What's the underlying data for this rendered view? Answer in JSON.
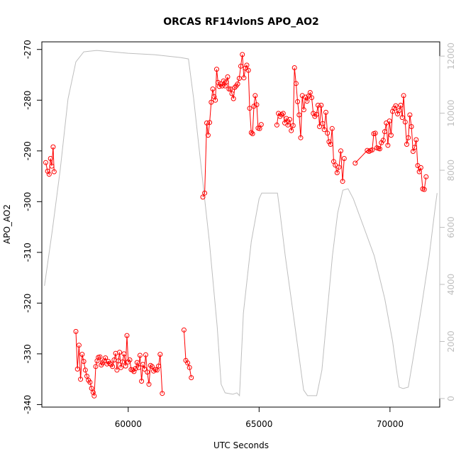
{
  "chart_data": {
    "type": "line",
    "title": "ORCAS RF14vlonS APO_AO2",
    "xlabel": "UTC Seconds",
    "ylabel": "APO_AO2",
    "xlim": [
      56700,
      71900
    ],
    "ylim": [
      -340.5,
      -268.5
    ],
    "y2lim": [
      -300,
      12500
    ],
    "grid": false,
    "x_ticks": [
      60000,
      65000,
      70000
    ],
    "y_ticks": [
      -340,
      -330,
      -320,
      -310,
      -300,
      -290,
      -280,
      -270
    ],
    "y2_ticks": [
      0,
      2000,
      4000,
      6000,
      8000,
      10000,
      12000
    ],
    "colors": {
      "apo": "#ff0000",
      "altitude": "#bebebe",
      "axis": "#000000",
      "right_axis": "#bebebe"
    },
    "series": [
      {
        "axis": "left",
        "style": "line+points",
        "segments": [
          [
            [
              56850,
              -292.3
            ],
            [
              56920,
              -294
            ],
            [
              56980,
              -294.6
            ],
            [
              57030,
              -291.5
            ],
            [
              57080,
              -293
            ],
            [
              57130,
              -289.2
            ],
            [
              57170,
              -294.1
            ]
          ],
          [
            [
              58000,
              -325.6
            ],
            [
              58060,
              -333
            ],
            [
              58120,
              -328.3
            ],
            [
              58180,
              -335
            ],
            [
              58240,
              -330.1
            ],
            [
              58300,
              -331.5
            ],
            [
              58360,
              -333.2
            ],
            [
              58420,
              -334.4
            ],
            [
              58480,
              -335.2
            ],
            [
              58540,
              -335.6
            ],
            [
              58600,
              -336.8
            ],
            [
              58660,
              -337.6
            ],
            [
              58700,
              -338.3
            ],
            [
              58760,
              -332.5
            ],
            [
              58810,
              -331.4
            ],
            [
              58860,
              -330.7
            ],
            [
              58920,
              -330.6
            ],
            [
              58970,
              -332.2
            ],
            [
              59020,
              -331.8
            ],
            [
              59080,
              -331.4
            ],
            [
              59130,
              -330.8
            ],
            [
              59190,
              -332
            ],
            [
              59240,
              -331.5
            ],
            [
              59300,
              -331.9
            ],
            [
              59350,
              -332.1
            ],
            [
              59400,
              -332.5
            ],
            [
              59460,
              -331.2
            ],
            [
              59520,
              -329.9
            ],
            [
              59570,
              -333.2
            ],
            [
              59620,
              -331.4
            ],
            [
              59670,
              -329.7
            ],
            [
              59720,
              -332.7
            ],
            [
              59780,
              -331.6
            ],
            [
              59840,
              -330
            ],
            [
              59900,
              -332.4
            ],
            [
              59950,
              -326.4
            ],
            [
              60000,
              -331.6
            ],
            [
              60060,
              -331.2
            ],
            [
              60110,
              -333.1
            ],
            [
              60170,
              -333.2
            ],
            [
              60220,
              -333.5
            ],
            [
              60280,
              -332.9
            ],
            [
              60340,
              -331.7
            ],
            [
              60400,
              -332.7
            ],
            [
              60450,
              -330.3
            ],
            [
              60510,
              -335.4
            ],
            [
              60560,
              -332.1
            ],
            [
              60620,
              -333
            ],
            [
              60670,
              -330.2
            ],
            [
              60730,
              -333.6
            ],
            [
              60790,
              -336
            ],
            [
              60850,
              -332.3
            ],
            [
              60910,
              -332.5
            ],
            [
              60970,
              -333.4
            ],
            [
              61040,
              -333.1
            ],
            [
              61100,
              -333.2
            ],
            [
              61160,
              -332.4
            ],
            [
              61220,
              -330.1
            ],
            [
              61300,
              -337.8
            ]
          ],
          [
            [
              62130,
              -325.3
            ],
            [
              62200,
              -331.3
            ],
            [
              62270,
              -331.8
            ],
            [
              62340,
              -332.7
            ],
            [
              62410,
              -334.7
            ]
          ],
          [
            [
              62850,
              -299.1
            ],
            [
              62920,
              -298.3
            ],
            [
              63000,
              -284.5
            ],
            [
              63050,
              -286.9
            ],
            [
              63110,
              -284.4
            ],
            [
              63170,
              -280.4
            ],
            [
              63230,
              -277.8
            ],
            [
              63280,
              -279.3
            ],
            [
              63330,
              -280
            ],
            [
              63380,
              -273.9
            ],
            [
              63430,
              -276.5
            ],
            [
              63480,
              -277.3
            ],
            [
              63530,
              -276.8
            ],
            [
              63590,
              -277.2
            ],
            [
              63640,
              -276.2
            ],
            [
              63700,
              -277.2
            ],
            [
              63750,
              -276.4
            ],
            [
              63800,
              -275.4
            ],
            [
              63850,
              -277.8
            ],
            [
              63910,
              -277.8
            ],
            [
              63960,
              -278.7
            ],
            [
              64020,
              -279.7
            ],
            [
              64070,
              -277.5
            ],
            [
              64120,
              -277.2
            ],
            [
              64180,
              -276.8
            ],
            [
              64240,
              -275.7
            ],
            [
              64300,
              -273.3
            ],
            [
              64360,
              -271
            ],
            [
              64420,
              -275.6
            ],
            [
              64480,
              -273.7
            ],
            [
              64530,
              -273.1
            ],
            [
              64590,
              -274.1
            ],
            [
              64640,
              -281.6
            ],
            [
              64700,
              -286.4
            ],
            [
              64750,
              -286.6
            ],
            [
              64800,
              -281.2
            ],
            [
              64850,
              -279.1
            ],
            [
              64910,
              -280.9
            ],
            [
              64960,
              -285.5
            ],
            [
              65020,
              -285.6
            ],
            [
              65080,
              -284.8
            ]
          ],
          [
            [
              65680,
              -284.9
            ],
            [
              65740,
              -282.6
            ],
            [
              65800,
              -283.2
            ],
            [
              65860,
              -282.8
            ],
            [
              65920,
              -282.6
            ],
            [
              65980,
              -284.5
            ],
            [
              66040,
              -283.6
            ],
            [
              66100,
              -284.9
            ],
            [
              66170,
              -283.8
            ],
            [
              66230,
              -286
            ],
            [
              66300,
              -285
            ],
            [
              66350,
              -273.6
            ],
            [
              66410,
              -276.7
            ],
            [
              66470,
              -280.3
            ],
            [
              66530,
              -282.9
            ],
            [
              66590,
              -287.4
            ],
            [
              66650,
              -279.1
            ],
            [
              66710,
              -281.9
            ],
            [
              66770,
              -279.4
            ],
            [
              66830,
              -280.2
            ],
            [
              66890,
              -279.2
            ],
            [
              66950,
              -278.5
            ],
            [
              67010,
              -279.5
            ],
            [
              67070,
              -282.6
            ],
            [
              67130,
              -283.2
            ],
            [
              67190,
              -282.8
            ],
            [
              67250,
              -281
            ],
            [
              67310,
              -285.2
            ],
            [
              67370,
              -281
            ],
            [
              67430,
              -284.6
            ],
            [
              67490,
              -285.8
            ],
            [
              67550,
              -282.4
            ],
            [
              67610,
              -286.5
            ],
            [
              67670,
              -288.2
            ],
            [
              67730,
              -288.7
            ],
            [
              67790,
              -285.6
            ],
            [
              67850,
              -292.1
            ],
            [
              67910,
              -292.8
            ],
            [
              67980,
              -294.3
            ],
            [
              68050,
              -293.2
            ],
            [
              68120,
              -290
            ],
            [
              68190,
              -296
            ],
            [
              68250,
              -291.5
            ]
          ],
          [
            [
              68670,
              -292.4
            ],
            [
              69130,
              -289.9
            ],
            [
              69200,
              -290.1
            ],
            [
              69260,
              -289.9
            ],
            [
              69320,
              -289.8
            ],
            [
              69380,
              -286.6
            ],
            [
              69440,
              -286.5
            ],
            [
              69500,
              -289.4
            ],
            [
              69560,
              -289.5
            ],
            [
              69610,
              -289.6
            ],
            [
              69670,
              -288.4
            ],
            [
              69740,
              -287.9
            ],
            [
              69800,
              -286.2
            ],
            [
              69860,
              -284.5
            ],
            [
              69920,
              -288.9
            ],
            [
              69980,
              -284.1
            ],
            [
              70040,
              -286.9
            ],
            [
              70100,
              -282.2
            ],
            [
              70160,
              -281.6
            ],
            [
              70220,
              -281.1
            ],
            [
              70290,
              -282.7
            ],
            [
              70350,
              -282
            ],
            [
              70410,
              -281
            ],
            [
              70470,
              -283.4
            ],
            [
              70520,
              -279.1
            ],
            [
              70580,
              -284.3
            ],
            [
              70640,
              -288.7
            ],
            [
              70700,
              -287.4
            ],
            [
              70760,
              -282.9
            ],
            [
              70820,
              -285.2
            ],
            [
              70880,
              -290.1
            ],
            [
              70940,
              -289.3
            ],
            [
              71000,
              -287.8
            ],
            [
              71060,
              -292.9
            ],
            [
              71120,
              -294.1
            ],
            [
              71180,
              -293.3
            ],
            [
              71250,
              -297.5
            ],
            [
              71310,
              -297.6
            ],
            [
              71380,
              -295.1
            ]
          ]
        ]
      },
      {
        "axis": "right",
        "style": "line",
        "points": [
          [
            56800,
            3950
          ],
          [
            57100,
            5900
          ],
          [
            57400,
            8000
          ],
          [
            57700,
            10500
          ],
          [
            58000,
            11800
          ],
          [
            58300,
            12150
          ],
          [
            58800,
            12200
          ],
          [
            60000,
            12100
          ],
          [
            61000,
            12050
          ],
          [
            61500,
            12000
          ],
          [
            62000,
            11950
          ],
          [
            62300,
            11900
          ],
          [
            62500,
            10500
          ],
          [
            62800,
            8000
          ],
          [
            63100,
            5500
          ],
          [
            63400,
            2500
          ],
          [
            63550,
            500
          ],
          [
            63700,
            200
          ],
          [
            64000,
            150
          ],
          [
            64150,
            200
          ],
          [
            64250,
            100
          ],
          [
            64400,
            3000
          ],
          [
            64700,
            5500
          ],
          [
            65000,
            7000
          ],
          [
            65100,
            7200
          ],
          [
            65700,
            7200
          ],
          [
            65800,
            6500
          ],
          [
            66000,
            5000
          ],
          [
            66300,
            3000
          ],
          [
            66700,
            300
          ],
          [
            66850,
            100
          ],
          [
            67200,
            100
          ],
          [
            67400,
            1000
          ],
          [
            67600,
            3000
          ],
          [
            67800,
            5000
          ],
          [
            68000,
            6500
          ],
          [
            68200,
            7300
          ],
          [
            68400,
            7350
          ],
          [
            68600,
            7000
          ],
          [
            69000,
            6000
          ],
          [
            69400,
            5000
          ],
          [
            69800,
            3500
          ],
          [
            70100,
            2000
          ],
          [
            70250,
            1000
          ],
          [
            70350,
            400
          ],
          [
            70500,
            350
          ],
          [
            70700,
            400
          ],
          [
            70900,
            1500
          ],
          [
            71200,
            3200
          ],
          [
            71500,
            5000
          ],
          [
            71700,
            6500
          ],
          [
            71800,
            7200
          ]
        ]
      }
    ]
  }
}
